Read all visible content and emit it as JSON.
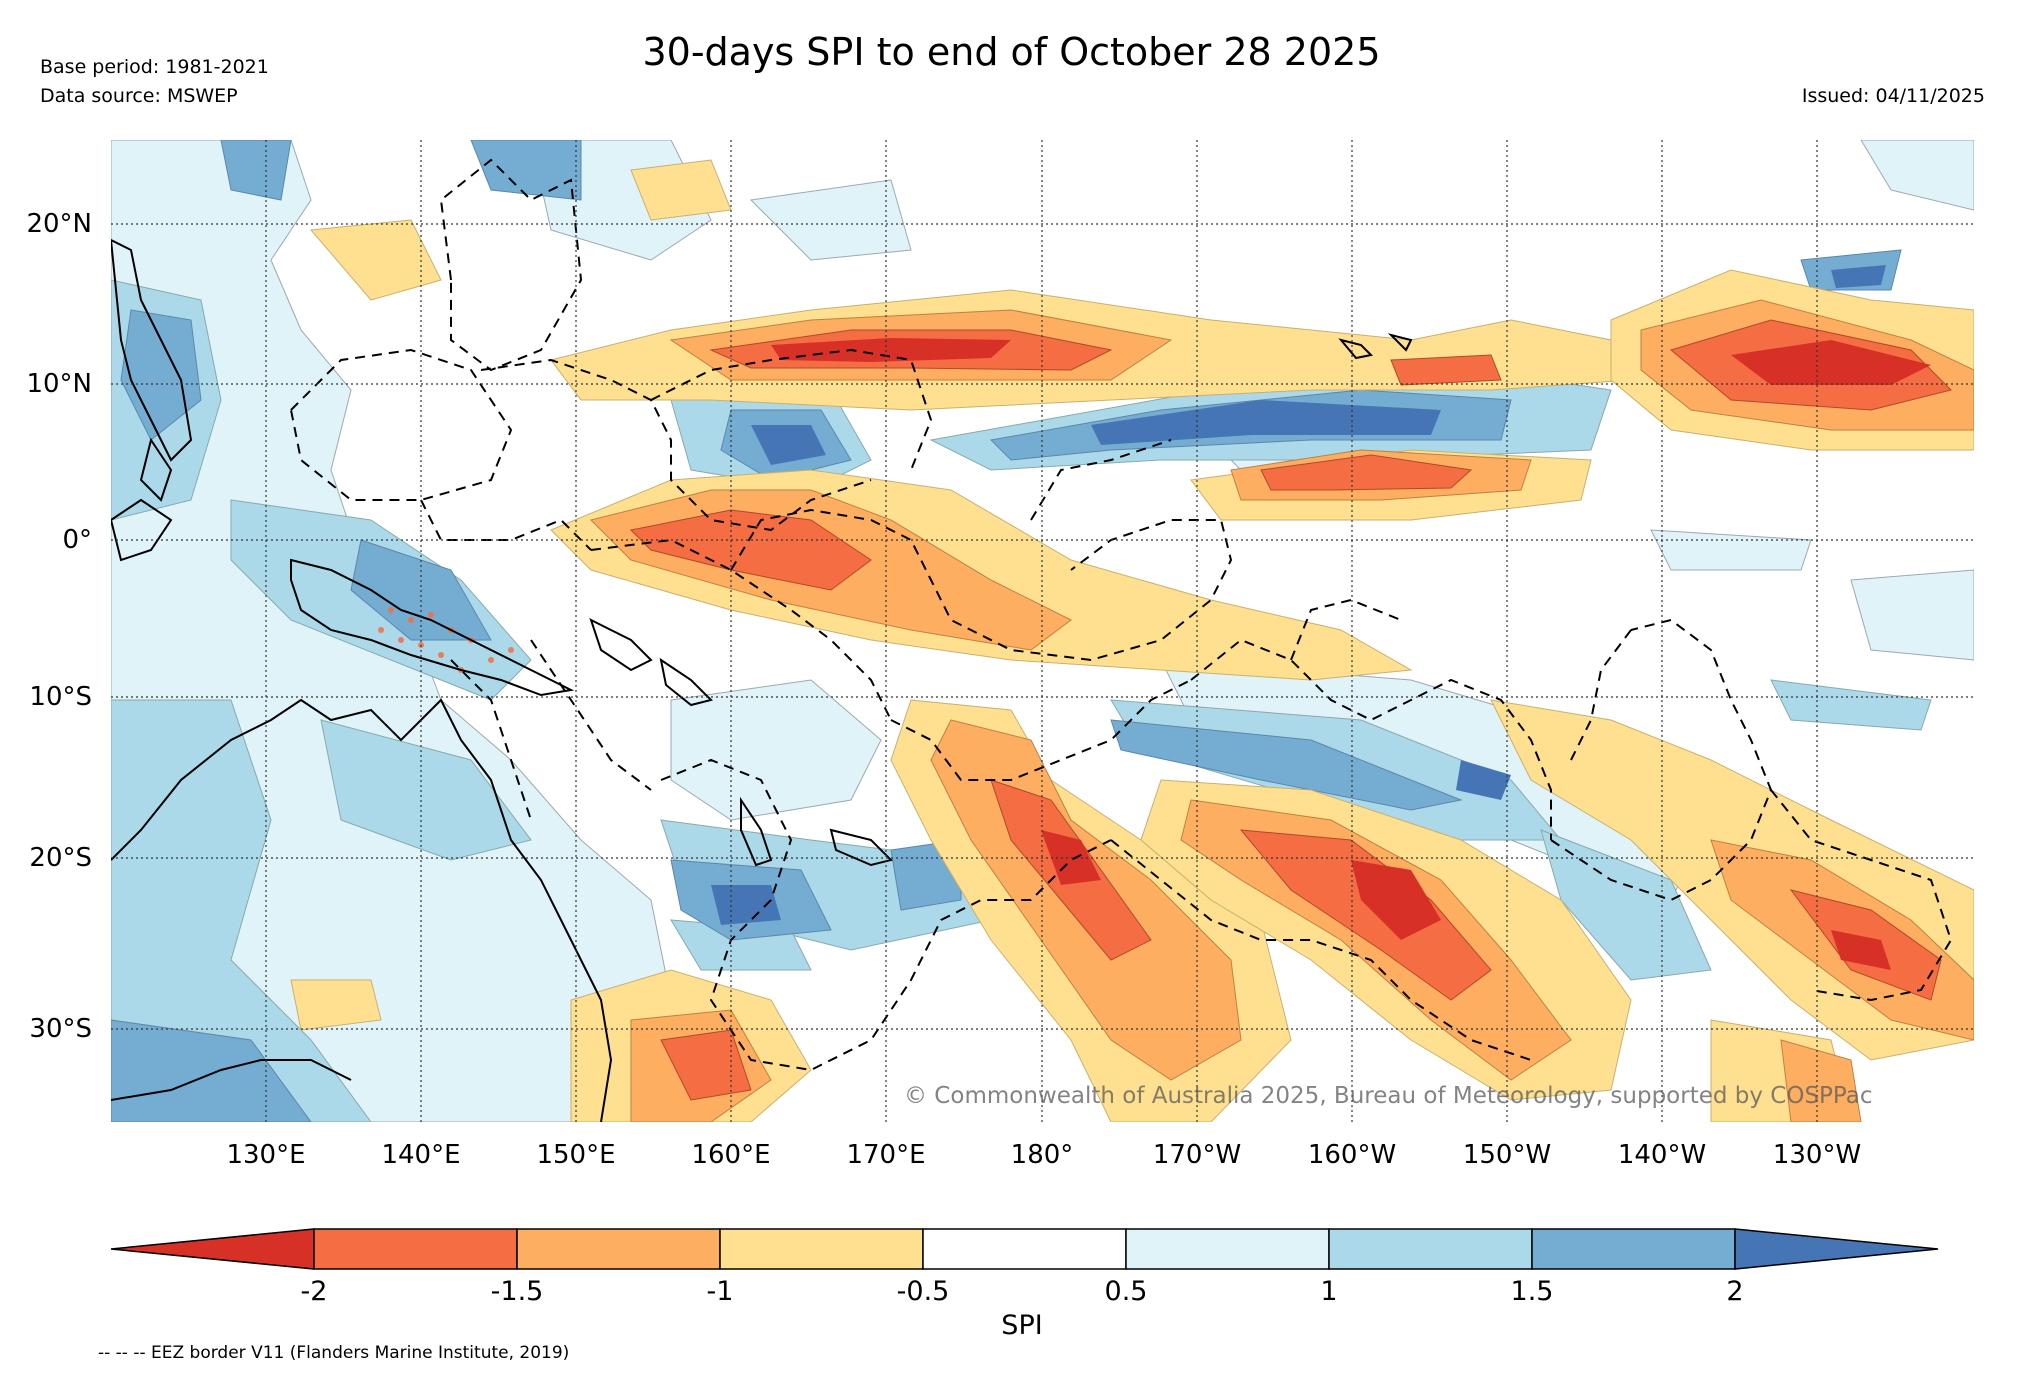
{
  "header": {
    "title": "30-days SPI to end of October 28 2025",
    "base_period": "Base period: 1981-2021",
    "data_source": "Data source: MSWEP",
    "issued": "Issued: 04/11/2025"
  },
  "map": {
    "lat_labels": [
      "20°N",
      "10°N",
      "0°",
      "10°S",
      "20°S",
      "30°S"
    ],
    "lon_labels": [
      "130°E",
      "140°E",
      "150°E",
      "160°E",
      "170°E",
      "180°",
      "170°W",
      "160°W",
      "150°W",
      "140°W",
      "130°W"
    ],
    "copyright": "© Commonwealth of Australia 2025, Bureau of Meteorology, supported by COSPPac",
    "gridlines": true
  },
  "colorbar": {
    "label": "SPI",
    "ticks": [
      "-2",
      "-1.5",
      "-1",
      "-0.5",
      "0.5",
      "1",
      "1.5",
      "2"
    ],
    "colors": {
      "extreme_dry": "#d73027",
      "very_dry": "#f46d43",
      "dry": "#fdae61",
      "mod_dry": "#fee090",
      "normal": "#ffffff",
      "mod_wet": "#e0f3f8",
      "wet": "#abd9e9",
      "very_wet": "#74add1",
      "extreme_wet": "#4575b4"
    }
  },
  "footer": {
    "eez_note": "-- -- -- EEZ border V11 (Flanders Marine Institute, 2019)"
  }
}
